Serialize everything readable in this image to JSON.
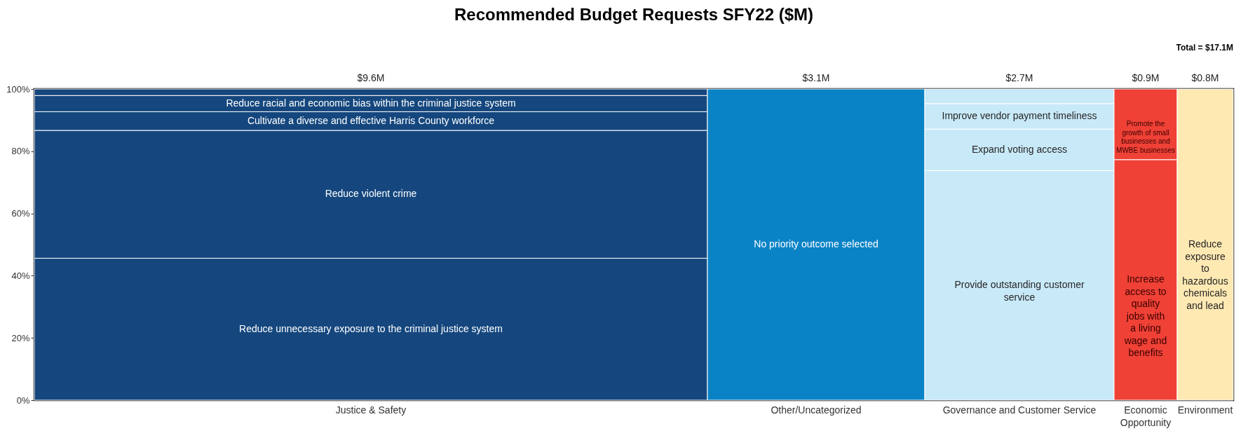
{
  "chart_data": {
    "type": "bar",
    "title": "Recommended Budget Requests SFY22 ($M)",
    "stacked": true,
    "legend": false,
    "grid": false,
    "categories": [
      "Justice & Safety",
      "Other/Uncategorized",
      "Governance and Customer Service",
      "Economic Opportunity",
      "Environment"
    ],
    "annotations": [
      "Total = $17.1M",
      {
        "text": "$9.6M",
        "x": "Justice & Safety",
        "y": 100
      },
      {
        "text": "$3.1M",
        "x": "Other/Uncategorized",
        "y": 100
      },
      {
        "text": "$2.7M",
        "x": "Governance and Customer Service",
        "y": 100
      },
      {
        "text": "$0.9M",
        "x": "Economic Opportunity",
        "y": 100
      },
      {
        "text": "$0.8M",
        "x": "Environment",
        "y": 100
      }
    ],
    "ylim": [
      0,
      100
    ],
    "yticks": [
      {
        "value": 0,
        "label": "0%"
      },
      {
        "value": 20,
        "label": "20%"
      },
      {
        "value": 40,
        "label": "40%"
      },
      {
        "value": 60,
        "label": "60%"
      },
      {
        "value": 80,
        "label": "80%"
      },
      {
        "value": 100,
        "label": "100%"
      }
    ],
    "series": [
      {
        "name": "Reduce unnecessary exposure to the criminal justice system",
        "color": "#15477e",
        "values": [
          45.6,
          null,
          null,
          null,
          null
        ]
      },
      {
        "name": "Reduce violent crime",
        "color": "#15477e",
        "values": [
          41.1,
          null,
          null,
          null,
          null
        ]
      },
      {
        "name": "Cultivate a diverse and effective Harris County workforce",
        "color": "#15477e",
        "values": [
          6.0,
          null,
          null,
          null,
          null
        ]
      },
      {
        "name": "Reduce racial and economic bias within the criminal justice system",
        "color": "#15477e",
        "values": [
          5.2,
          null,
          null,
          null,
          null
        ]
      },
      {
        "color": "#15477e",
        "values": [
          2.1,
          null,
          null,
          null,
          null
        ]
      },
      {
        "name": "No priority outcome selected",
        "color": "#0a83c6",
        "values": [
          null,
          100,
          null,
          null,
          null
        ]
      },
      {
        "name": "Provide outstanding customer service",
        "color": "#c8e9f8",
        "values": [
          null,
          null,
          73.8,
          null,
          null
        ]
      },
      {
        "name": "Expand voting access",
        "color": "#c8e9f8",
        "values": [
          null,
          null,
          13.3,
          null,
          null
        ]
      },
      {
        "name": "Improve vendor payment timeliness",
        "color": "#c8e9f8",
        "values": [
          null,
          null,
          8.2,
          null,
          null
        ]
      },
      {
        "color": "#c8e9f8",
        "values": [
          null,
          null,
          4.7,
          null,
          null
        ]
      },
      {
        "name": "Increase access to quality jobs with a living wage and benefits",
        "color": "#ef4136",
        "values": [
          null,
          null,
          null,
          77.3,
          null
        ]
      },
      {
        "name": "Promote the growth of small businesses and MWBE businesses",
        "color": "#ef4136",
        "values": [
          null,
          null,
          null,
          22.7,
          null
        ]
      },
      {
        "name": "Reduce exposure to hazardous chemicals and lead",
        "color": "#ffe9b3",
        "values": [
          null,
          null,
          null,
          null,
          100
        ]
      }
    ]
  }
}
